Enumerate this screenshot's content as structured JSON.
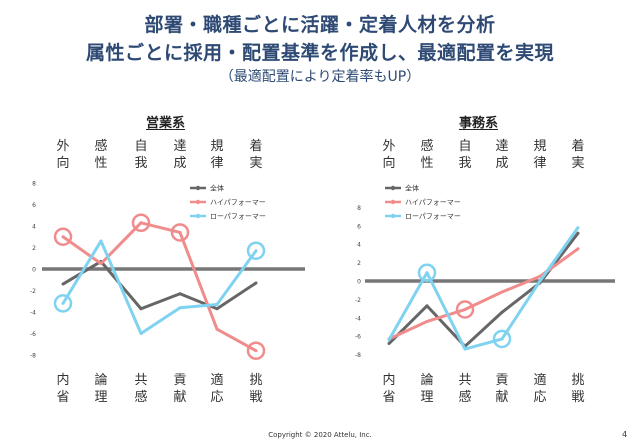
{
  "header": {
    "title_line1": "部署・職種ごとに活躍・定着人材を分析",
    "title_line2": "属性ごとに採用・配置基準を作成し、最適配置を実現",
    "subtitle": "（最適配置により定着率もUP）"
  },
  "footer": {
    "copyright": "Copyright © 2020 Attelu, Inc.",
    "page_number": "4"
  },
  "colors": {
    "overall": "#666666",
    "high": "#f08c8c",
    "low": "#7fd2f0",
    "zero_line": "#777777"
  },
  "chart_data": [
    {
      "type": "line",
      "title": "営業系",
      "categories": [
        "外向・内省",
        "感性・論理",
        "自我・共感",
        "達成・貢献",
        "規律・適応",
        "着実・挑戦"
      ],
      "top_labels": [
        "外向",
        "感性",
        "自我",
        "達成",
        "規律",
        "着実"
      ],
      "bottom_labels": [
        "内省",
        "論理",
        "共感",
        "貢献",
        "適応",
        "挑戦"
      ],
      "yticks": [
        8,
        6,
        4,
        2,
        0,
        -2,
        -4,
        -6,
        -8
      ],
      "ylim": [
        -8,
        8
      ],
      "legend_position": "top-right",
      "series": [
        {
          "name": "全体",
          "color": "#666666",
          "values": [
            -1.4,
            0.7,
            -3.7,
            -2.3,
            -3.7,
            -1.3
          ],
          "highlights": []
        },
        {
          "name": "ハイパフォーマー",
          "color": "#f08c8c",
          "values": [
            3.0,
            0.5,
            4.3,
            3.4,
            -5.6,
            -7.6
          ],
          "highlights": [
            0,
            2,
            3,
            5
          ]
        },
        {
          "name": "ローパフォーマー",
          "color": "#7fd2f0",
          "values": [
            -3.2,
            2.6,
            -6.0,
            -3.6,
            -3.3,
            1.7
          ],
          "highlights": [
            0,
            5
          ]
        }
      ]
    },
    {
      "type": "line",
      "title": "事務系",
      "categories": [
        "外向・内省",
        "感性・論理",
        "自我・共感",
        "達成・貢献",
        "規律・適応",
        "着実・挑戦"
      ],
      "top_labels": [
        "外向",
        "感性",
        "自我",
        "達成",
        "規律",
        "着実"
      ],
      "bottom_labels": [
        "内省",
        "論理",
        "共感",
        "貢献",
        "適応",
        "挑戦"
      ],
      "yticks": [
        8,
        6,
        4,
        2,
        0,
        -2,
        -4,
        -6,
        -8
      ],
      "ylim": [
        -8,
        8
      ],
      "legend_position": "top-left",
      "series": [
        {
          "name": "全体",
          "color": "#666666",
          "values": [
            -6.8,
            -2.7,
            -7.1,
            -3.4,
            -0.2,
            5.2
          ],
          "highlights": []
        },
        {
          "name": "ハイパフォーマー",
          "color": "#f08c8c",
          "values": [
            -6.3,
            -4.4,
            -3.1,
            -1.2,
            0.5,
            3.5
          ],
          "highlights": [
            2
          ]
        },
        {
          "name": "ローパフォーマー",
          "color": "#7fd2f0",
          "values": [
            -6.4,
            0.9,
            -7.4,
            -6.3,
            0.0,
            5.8
          ],
          "highlights": [
            1,
            3
          ]
        }
      ]
    }
  ]
}
